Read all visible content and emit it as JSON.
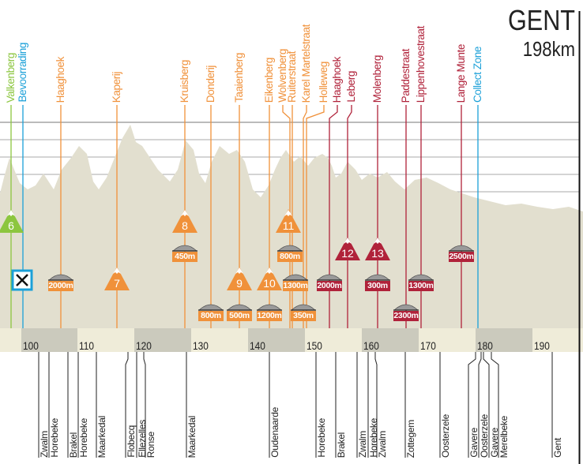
{
  "finish": {
    "title": "GENT",
    "distance": "198km"
  },
  "colors": {
    "green": "#8cc63f",
    "blue": "#1ba0d8",
    "orange": "#f0913a",
    "red": "#b0223a",
    "profile": "#e2dfcf",
    "band_light": "#efecd9",
    "band_dark": "#cbcabd"
  },
  "top_labels": [
    {
      "name": "Valkenberg",
      "color": "green"
    },
    {
      "name": "Bevoorrading",
      "color": "blue"
    },
    {
      "name": "Haaghoek",
      "color": "orange"
    },
    {
      "name": "Kaperij",
      "color": "orange"
    },
    {
      "name": "Kruisberg",
      "color": "orange"
    },
    {
      "name": "Donderij",
      "color": "orange"
    },
    {
      "name": "Taaienberg",
      "color": "orange"
    },
    {
      "name": "Eikenberg",
      "color": "orange"
    },
    {
      "name": "Wolvenberg",
      "color": "orange"
    },
    {
      "name": "Ruiterstraat",
      "color": "orange"
    },
    {
      "name": "Karel Martelstraat",
      "color": "orange"
    },
    {
      "name": "Holleweg",
      "color": "orange"
    },
    {
      "name": "Haaghoek",
      "color": "red"
    },
    {
      "name": "Leberg",
      "color": "red"
    },
    {
      "name": "Molenberg",
      "color": "red"
    },
    {
      "name": "Paddestraat",
      "color": "red"
    },
    {
      "name": "Lippenhovestraat",
      "color": "red"
    },
    {
      "name": "Lange Munte",
      "color": "red"
    },
    {
      "name": "Collect Zone",
      "color": "blue"
    }
  ],
  "climbs": [
    {
      "number": "6",
      "color": "green"
    },
    {
      "number": "7",
      "color": "orange"
    },
    {
      "number": "8",
      "color": "orange"
    },
    {
      "number": "9",
      "color": "orange"
    },
    {
      "number": "10",
      "color": "orange"
    },
    {
      "number": "11",
      "color": "orange"
    },
    {
      "number": "12",
      "color": "red"
    },
    {
      "number": "13",
      "color": "red"
    }
  ],
  "cobbles": [
    {
      "length": "2000m",
      "color": "orange"
    },
    {
      "length": "450m",
      "color": "orange"
    },
    {
      "length": "800m",
      "color": "orange"
    },
    {
      "length": "500m",
      "color": "orange"
    },
    {
      "length": "1200m",
      "color": "orange"
    },
    {
      "length": "800m",
      "color": "orange"
    },
    {
      "length": "1300m",
      "color": "orange"
    },
    {
      "length": "350m",
      "color": "orange"
    },
    {
      "length": "2000m",
      "color": "red"
    },
    {
      "length": "300m",
      "color": "red"
    },
    {
      "length": "2300m",
      "color": "red"
    },
    {
      "length": "1300m",
      "color": "red"
    },
    {
      "length": "2500m",
      "color": "red"
    }
  ],
  "feed_zone_icon": "fork-spoon-icon",
  "km_ticks": [
    "100",
    "110",
    "120",
    "130",
    "140",
    "150",
    "160",
    "170",
    "180",
    "190"
  ],
  "towns": [
    "Zwalm",
    "Horebeke",
    "Brakel",
    "Horebeke",
    "Maarkedal",
    "Flobecq",
    "Ellezelles",
    "Ronse",
    "Maarkedal",
    "Oudenaarde",
    "Horebeke",
    "Brakel",
    "Zwalm",
    "Horebeke",
    "Zwalm",
    "Zottegem",
    "Oosterzele",
    "Gavere",
    "Oosterzele",
    "Gavere",
    "Merelbeke",
    "Gent"
  ]
}
